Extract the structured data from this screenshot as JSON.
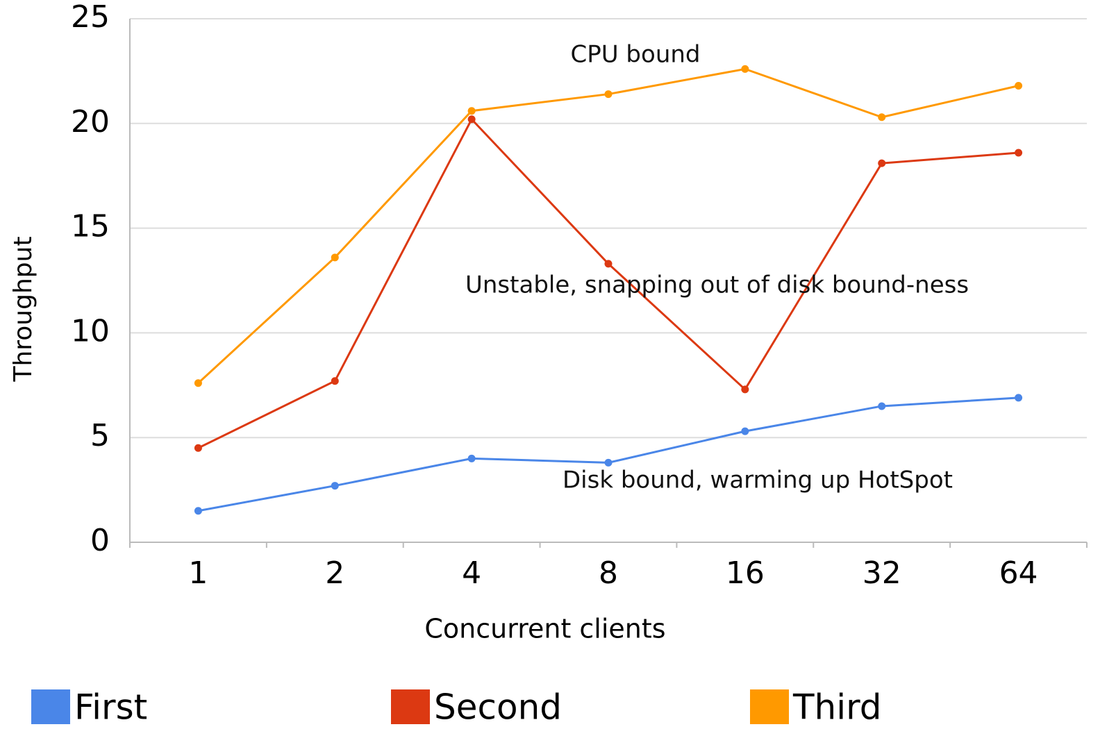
{
  "chart_data": {
    "type": "line",
    "x_label": "Concurrent clients",
    "y_label": "Throughput",
    "categories": [
      "1",
      "2",
      "4",
      "8",
      "16",
      "32",
      "64"
    ],
    "series": [
      {
        "name": "First",
        "color": "#4a86e8",
        "values": [
          1.5,
          2.7,
          4.0,
          3.8,
          5.3,
          6.5,
          6.9
        ]
      },
      {
        "name": "Second",
        "color": "#dc3912",
        "values": [
          4.5,
          7.7,
          20.2,
          13.3,
          7.3,
          18.1,
          18.6
        ]
      },
      {
        "name": "Third",
        "color": "#ff9900",
        "values": [
          7.6,
          13.6,
          20.6,
          21.4,
          22.6,
          20.3,
          21.8
        ]
      }
    ],
    "ylim": [
      0,
      25
    ],
    "yticks": [
      0,
      5,
      10,
      15,
      20,
      25
    ],
    "grid": true,
    "annotations": [
      "CPU bound",
      "Unstable, snapping out of disk bound-ness",
      "Disk bound, warming up HotSpot"
    ]
  }
}
